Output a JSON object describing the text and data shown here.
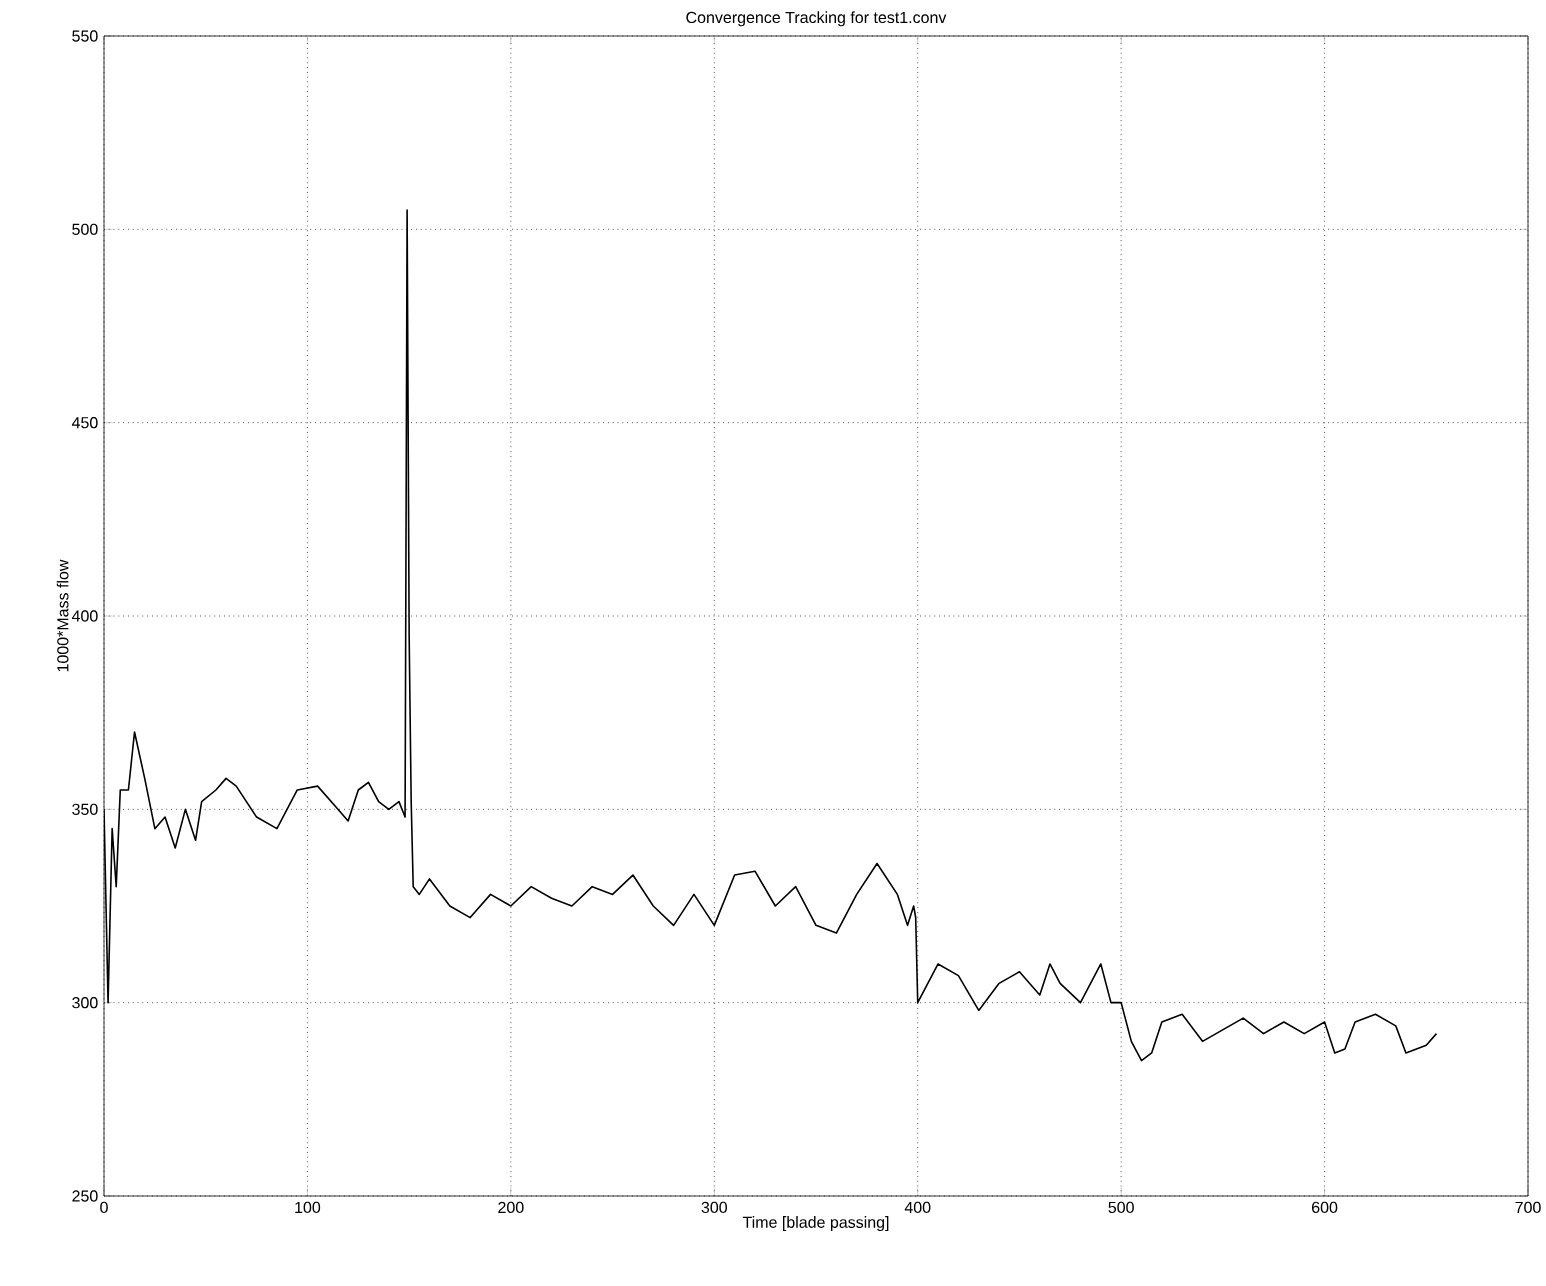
{
  "chart_data": {
    "type": "line",
    "title": "Convergence Tracking for test1.conv",
    "xlabel": "Time [blade passing]",
    "ylabel": "1000*Mass flow",
    "xlim": [
      0,
      700
    ],
    "ylim": [
      250,
      550
    ],
    "xticks": [
      0,
      100,
      200,
      300,
      400,
      500,
      600,
      700
    ],
    "yticks": [
      250,
      300,
      350,
      400,
      450,
      500,
      550
    ],
    "grid": true,
    "line_style": "solid",
    "marker": "none",
    "series": [
      {
        "color": "#000000",
        "x": [
          0,
          2,
          4,
          6,
          8,
          12,
          15,
          20,
          25,
          30,
          35,
          40,
          45,
          48,
          55,
          60,
          65,
          75,
          85,
          95,
          105,
          115,
          120,
          125,
          130,
          135,
          140,
          145,
          148,
          149,
          150,
          151,
          152,
          155,
          160,
          170,
          180,
          190,
          200,
          210,
          220,
          230,
          240,
          250,
          260,
          270,
          280,
          290,
          300,
          310,
          320,
          330,
          340,
          350,
          360,
          370,
          380,
          390,
          395,
          398,
          399,
          400,
          410,
          420,
          430,
          440,
          450,
          460,
          465,
          470,
          480,
          490,
          495,
          500,
          505,
          510,
          515,
          520,
          530,
          540,
          550,
          560,
          570,
          580,
          590,
          600,
          605,
          610,
          615,
          625,
          635,
          640,
          650,
          655
        ],
        "values": [
          350,
          300,
          345,
          330,
          355,
          355,
          370,
          358,
          345,
          348,
          340,
          350,
          342,
          352,
          355,
          358,
          356,
          348,
          345,
          355,
          356,
          350,
          347,
          355,
          357,
          352,
          350,
          352,
          348,
          505,
          395,
          352,
          330,
          328,
          332,
          325,
          322,
          328,
          325,
          330,
          327,
          325,
          330,
          328,
          333,
          325,
          320,
          328,
          320,
          333,
          334,
          325,
          330,
          320,
          318,
          328,
          336,
          328,
          320,
          325,
          322,
          300,
          310,
          307,
          298,
          305,
          308,
          302,
          310,
          305,
          300,
          310,
          300,
          300,
          290,
          285,
          287,
          295,
          297,
          290,
          293,
          296,
          292,
          295,
          292,
          295,
          287,
          288,
          295,
          297,
          294,
          287,
          289,
          292
        ]
      }
    ]
  }
}
